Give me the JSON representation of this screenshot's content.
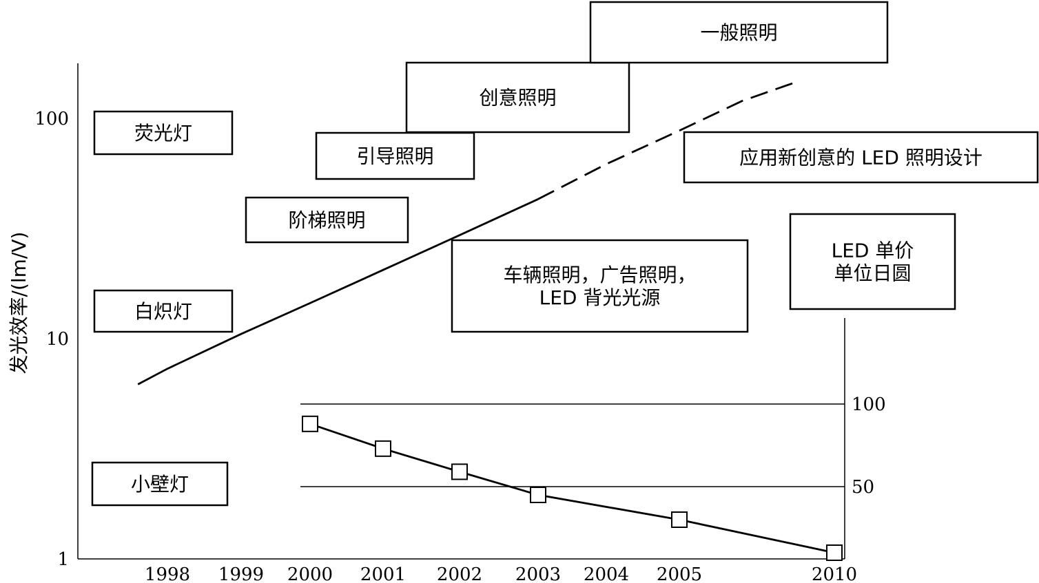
{
  "chart_data": [
    {
      "type": "line",
      "title": "",
      "ylabel": "发光效率/(lm/V)",
      "xlabel": "",
      "yscale": "log",
      "ylim": [
        1,
        160
      ],
      "xlim": [
        1996.8,
        2010.2
      ],
      "x_ticks": [
        "1998",
        "1999",
        "2000",
        "2001",
        "2002",
        "2003",
        "2004",
        "2005",
        "2010"
      ],
      "y_ticks": [
        "1",
        "10",
        "100"
      ],
      "series": [
        {
          "style": "solid",
          "points": [
            [
              1997.6,
              6.2
            ],
            [
              1998,
              7.3
            ],
            [
              1999,
              10.5
            ],
            [
              2000,
              14.5
            ],
            [
              2001,
              20.5
            ],
            [
              2002,
              29.5
            ],
            [
              2003,
              43
            ]
          ]
        },
        {
          "style": "dashed",
          "points": [
            [
              2003,
              43
            ],
            [
              2004,
              62
            ],
            [
              2005,
              88
            ],
            [
              2006,
              120
            ],
            [
              2006.8,
              145
            ]
          ]
        }
      ],
      "annotation_boxes": [
        {
          "lines": [
            "荧光灯"
          ]
        },
        {
          "lines": [
            "白炽灯"
          ]
        },
        {
          "lines": [
            "小壁灯"
          ]
        },
        {
          "lines": [
            "阶梯照明"
          ]
        },
        {
          "lines": [
            "引导照明"
          ]
        },
        {
          "lines": [
            "创意照明"
          ]
        },
        {
          "lines": [
            "一般照明"
          ]
        },
        {
          "lines": [
            "应用新创意的 LED 照明设计"
          ]
        },
        {
          "lines": [
            "车辆照明，广告照明，",
            "LED 背光光源"
          ]
        },
        {
          "lines": [
            "LED 单价",
            "单位日圆"
          ]
        }
      ]
    },
    {
      "type": "line",
      "title": "",
      "ylabel": "",
      "y_ticks": [
        "100",
        "50"
      ],
      "ylim": [
        0,
        110
      ],
      "series": [
        {
          "marker": "square",
          "points": [
            [
              2000,
              88
            ],
            [
              2001,
              73
            ],
            [
              2002,
              59
            ],
            [
              2003,
              45
            ],
            [
              2005,
              30
            ],
            [
              2010,
              10
            ]
          ]
        }
      ],
      "gridlines": [
        100,
        50
      ]
    }
  ]
}
